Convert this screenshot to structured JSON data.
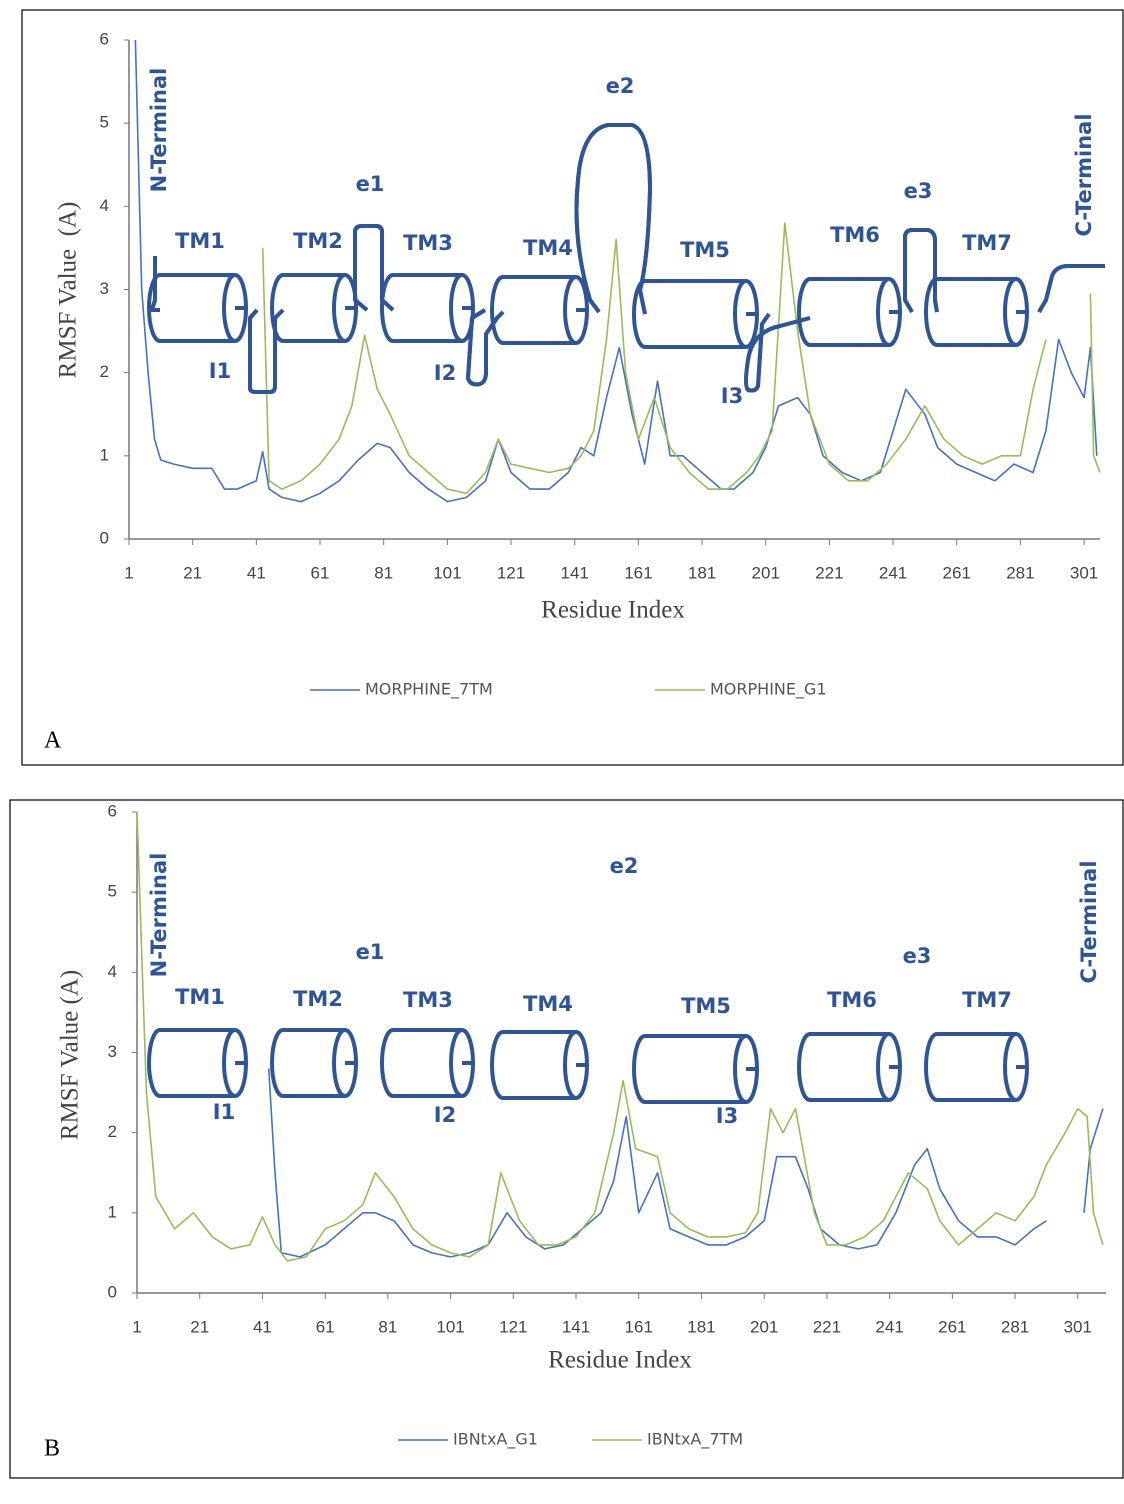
{
  "chart_data": [
    {
      "type": "line",
      "panel_label": "A",
      "x_label": "Residue Index",
      "y_label": "RMSF Value  (A)",
      "xlim": [
        1,
        306
      ],
      "ylim": [
        0,
        6
      ],
      "xticks": [
        1,
        21,
        41,
        61,
        81,
        101,
        121,
        141,
        161,
        181,
        201,
        221,
        241,
        261,
        281,
        301
      ],
      "yticks": [
        0,
        1,
        2,
        3,
        4,
        5,
        6
      ],
      "annotations": [
        "N-Terminal",
        "TM1",
        "TM2",
        "e1",
        "TM3",
        "TM4",
        "e2",
        "TM5",
        "TM6",
        "e3",
        "TM7",
        "C-Terminal",
        "I1",
        "I2",
        "I3"
      ],
      "series": [
        {
          "name": "MORPHINE_7TM",
          "color": "#4472c4",
          "x": [
            3,
            5,
            7,
            9,
            11,
            15,
            21,
            27,
            31,
            35,
            41,
            43,
            45,
            49,
            55,
            61,
            67,
            73,
            79,
            83,
            89,
            95,
            101,
            107,
            113,
            117,
            121,
            127,
            133,
            139,
            143,
            147,
            151,
            155,
            159,
            163,
            167,
            171,
            175,
            181,
            187,
            191,
            197,
            201,
            205,
            211,
            215,
            219,
            225,
            231,
            237,
            241,
            245,
            251,
            255,
            261,
            267,
            273,
            279,
            285,
            289,
            293,
            297,
            301,
            303,
            305
          ],
          "values": [
            6,
            3,
            2,
            1.2,
            0.95,
            0.9,
            0.85,
            0.85,
            0.6,
            0.6,
            0.7,
            1.05,
            0.6,
            0.5,
            0.45,
            0.55,
            0.7,
            0.95,
            1.15,
            1.1,
            0.8,
            0.6,
            0.45,
            0.5,
            0.7,
            1.2,
            0.8,
            0.6,
            0.6,
            0.8,
            1.1,
            1.0,
            1.7,
            2.3,
            1.5,
            0.9,
            1.9,
            1.0,
            1.0,
            0.8,
            0.6,
            0.6,
            0.8,
            1.1,
            1.6,
            1.7,
            1.5,
            1.0,
            0.8,
            0.7,
            0.8,
            1.3,
            1.8,
            1.5,
            1.1,
            0.9,
            0.8,
            0.7,
            0.9,
            0.8,
            1.3,
            2.4,
            2.0,
            1.7,
            2.3,
            1.0
          ]
        },
        {
          "name": "MORPHINE_G1",
          "color": "#9bbb59",
          "x": [
            43,
            45,
            49,
            55,
            61,
            67,
            71,
            75,
            79,
            83,
            89,
            95,
            101,
            107,
            113,
            117,
            121,
            127,
            133,
            139,
            143,
            147,
            151,
            154,
            157,
            161,
            166,
            171,
            177,
            183,
            189,
            195,
            199,
            203,
            207,
            211,
            215,
            221,
            227,
            233,
            239,
            245,
            251,
            257,
            263,
            269,
            275,
            281,
            285,
            289,
            293,
            303,
            304,
            306
          ],
          "values": [
            3.5,
            0.7,
            0.6,
            0.7,
            0.9,
            1.2,
            1.6,
            2.45,
            1.8,
            1.5,
            1.0,
            0.8,
            0.6,
            0.55,
            0.8,
            1.2,
            0.9,
            0.85,
            0.8,
            0.85,
            1.0,
            1.3,
            2.4,
            3.6,
            2.0,
            1.2,
            1.7,
            1.1,
            0.8,
            0.6,
            0.6,
            0.8,
            1.0,
            1.3,
            3.8,
            2.5,
            1.5,
            0.9,
            0.7,
            0.7,
            0.9,
            1.2,
            1.6,
            1.2,
            1.0,
            0.9,
            1.0,
            1.0,
            1.8,
            2.4,
            null,
            2.95,
            1.0,
            0.8
          ]
        }
      ]
    },
    {
      "type": "line",
      "panel_label": "B",
      "x_label": "Residue Index",
      "y_label": "RMSF Value (A)",
      "xlim": [
        1,
        310
      ],
      "ylim": [
        0,
        6
      ],
      "xticks": [
        1,
        21,
        41,
        61,
        81,
        101,
        121,
        141,
        161,
        181,
        201,
        221,
        241,
        261,
        281,
        301
      ],
      "yticks": [
        0,
        1,
        2,
        3,
        4,
        5,
        6
      ],
      "annotations": [
        "N-Terminal",
        "TM1",
        "TM2",
        "e1",
        "TM3",
        "TM4",
        "e2",
        "TM5",
        "TM6",
        "e3",
        "TM7",
        "C-Terminal",
        "I1",
        "I2",
        "I3"
      ],
      "series": [
        {
          "name": "IBNtxA_G1",
          "color": "#4472c4",
          "x": [
            43,
            45,
            47,
            53,
            61,
            67,
            73,
            77,
            83,
            89,
            95,
            101,
            107,
            113,
            119,
            125,
            131,
            137,
            143,
            149,
            153,
            157,
            161,
            167,
            171,
            177,
            183,
            189,
            195,
            201,
            205,
            211,
            215,
            219,
            225,
            231,
            237,
            243,
            249,
            253,
            257,
            263,
            269,
            275,
            281,
            287,
            291,
            297,
            303,
            305,
            309
          ],
          "values": [
            2.8,
            1.5,
            0.5,
            0.45,
            0.6,
            0.8,
            1.0,
            1.0,
            0.9,
            0.6,
            0.5,
            0.45,
            0.5,
            0.6,
            1.0,
            0.7,
            0.55,
            0.6,
            0.8,
            1.0,
            1.4,
            2.2,
            1.0,
            1.5,
            0.8,
            0.7,
            0.6,
            0.6,
            0.7,
            0.9,
            1.7,
            1.7,
            1.3,
            0.8,
            0.6,
            0.55,
            0.6,
            1.0,
            1.6,
            1.8,
            1.3,
            0.9,
            0.7,
            0.7,
            0.6,
            0.8,
            0.9,
            null,
            1.0,
            1.8,
            2.3
          ]
        },
        {
          "name": "IBNtxA_7TM",
          "color": "#9bbb59",
          "x": [
            1,
            4,
            7,
            13,
            19,
            25,
            31,
            37,
            41,
            45,
            49,
            55,
            61,
            67,
            73,
            77,
            83,
            89,
            95,
            101,
            107,
            113,
            117,
            123,
            129,
            135,
            141,
            147,
            153,
            156,
            160,
            167,
            171,
            177,
            183,
            189,
            195,
            199,
            203,
            207,
            211,
            217,
            221,
            227,
            233,
            239,
            247,
            253,
            257,
            263,
            269,
            275,
            281,
            287,
            291,
            297,
            301,
            304,
            306,
            309
          ],
          "values": [
            6,
            2.5,
            1.2,
            0.8,
            1.0,
            0.7,
            0.55,
            0.6,
            0.95,
            0.6,
            0.4,
            0.45,
            0.8,
            0.9,
            1.1,
            1.5,
            1.2,
            0.8,
            0.6,
            0.5,
            0.45,
            0.6,
            1.5,
            0.9,
            0.6,
            0.6,
            0.7,
            1.0,
            2.0,
            2.65,
            1.8,
            1.7,
            1.0,
            0.8,
            0.7,
            0.7,
            0.75,
            1.0,
            2.3,
            2.0,
            2.3,
            1.0,
            0.6,
            0.6,
            0.7,
            0.9,
            1.5,
            1.3,
            0.9,
            0.6,
            0.8,
            1.0,
            0.9,
            1.2,
            1.6,
            2.0,
            2.3,
            2.2,
            1.0,
            0.6
          ]
        }
      ]
    }
  ]
}
